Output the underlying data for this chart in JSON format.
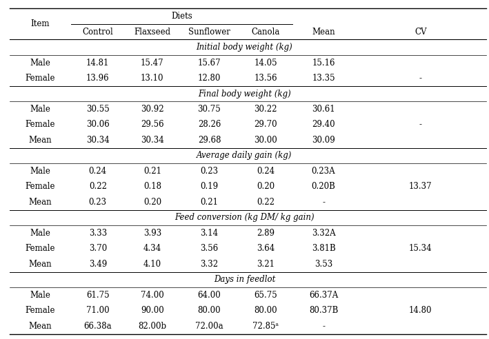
{
  "col_headers": [
    "Item",
    "Control",
    "Flaxseed",
    "Sunflower",
    "Canola",
    "Mean",
    "CV"
  ],
  "diets_label": "Diets",
  "sections": [
    {
      "label": "Initial body weight (kg)",
      "rows": [
        [
          "Male",
          "14.81",
          "15.47",
          "15.67",
          "14.05",
          "15.16",
          ""
        ],
        [
          "Female",
          "13.96",
          "13.10",
          "12.80",
          "13.56",
          "13.35",
          "-"
        ]
      ]
    },
    {
      "label": "Final body weight (kg)",
      "rows": [
        [
          "Male",
          "30.55",
          "30.92",
          "30.75",
          "30.22",
          "30.61",
          ""
        ],
        [
          "Female",
          "30.06",
          "29.56",
          "28.26",
          "29.70",
          "29.40",
          "-"
        ],
        [
          "Mean",
          "30.34",
          "30.34",
          "29.68",
          "30.00",
          "30.09",
          ""
        ]
      ]
    },
    {
      "label": "Average daily gain (kg)",
      "rows": [
        [
          "Male",
          "0.24",
          "0.21",
          "0.23",
          "0.24",
          "0.23A",
          ""
        ],
        [
          "Female",
          "0.22",
          "0.18",
          "0.19",
          "0.20",
          "0.20B",
          "13.37"
        ],
        [
          "Mean",
          "0.23",
          "0.20",
          "0.21",
          "0.22",
          "-",
          ""
        ]
      ]
    },
    {
      "label": "Feed conversion (kg DM/ kg gain)",
      "rows": [
        [
          "Male",
          "3.33",
          "3.93",
          "3.14",
          "2.89",
          "3.32A",
          ""
        ],
        [
          "Female",
          "3.70",
          "4.34",
          "3.56",
          "3.64",
          "3.81B",
          "15.34"
        ],
        [
          "Mean",
          "3.49",
          "4.10",
          "3.32",
          "3.21",
          "3.53",
          ""
        ]
      ]
    },
    {
      "label": "Days in feedlot",
      "rows": [
        [
          "Male",
          "61.75",
          "74.00",
          "64.00",
          "65.75",
          "66.37A",
          ""
        ],
        [
          "Female",
          "71.00",
          "90.00",
          "80.00",
          "80.00",
          "80.37B",
          "14.80"
        ],
        [
          "Mean",
          "66.38a",
          "82.00b",
          "72.00a",
          "72.85ᵃ",
          "-",
          ""
        ]
      ]
    }
  ],
  "bg_color": "white",
  "text_color": "black",
  "font_size": 8.5
}
